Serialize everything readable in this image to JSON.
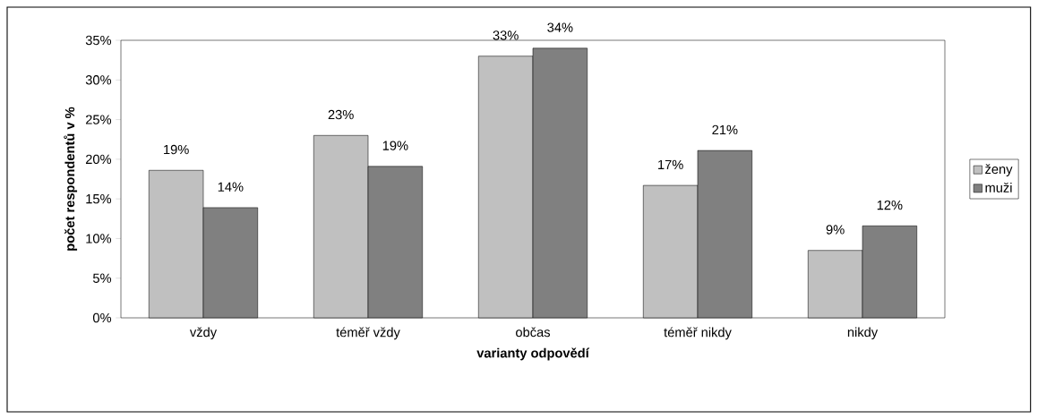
{
  "chart_data": {
    "type": "bar",
    "xlabel": "varianty odpovědí",
    "ylabel": "počet respondentů v %",
    "categories": [
      "vždy",
      "téměř vždy",
      "občas",
      "téměř nikdy",
      "nikdy"
    ],
    "series": [
      {
        "name": "ženy",
        "color": "#c0c0c0",
        "values": [
          18.6,
          23.0,
          33.0,
          16.7,
          8.5
        ],
        "value_labels": [
          "19%",
          "23%",
          "33%",
          "17%",
          "9%"
        ]
      },
      {
        "name": "muži",
        "color": "#808080",
        "values": [
          13.9,
          19.1,
          34.0,
          21.1,
          11.6
        ],
        "value_labels": [
          "14%",
          "19%",
          "34%",
          "21%",
          "12%"
        ]
      }
    ],
    "ylim": [
      0,
      35
    ],
    "yticks": [
      {
        "value": 0,
        "label": "0%"
      },
      {
        "value": 5,
        "label": "5%"
      },
      {
        "value": 10,
        "label": "10%"
      },
      {
        "value": 15,
        "label": "15%"
      },
      {
        "value": 20,
        "label": "20%"
      },
      {
        "value": 25,
        "label": "25%"
      },
      {
        "value": 30,
        "label": "30%"
      },
      {
        "value": 35,
        "label": "35%"
      }
    ],
    "legend": "right",
    "grid": false
  }
}
